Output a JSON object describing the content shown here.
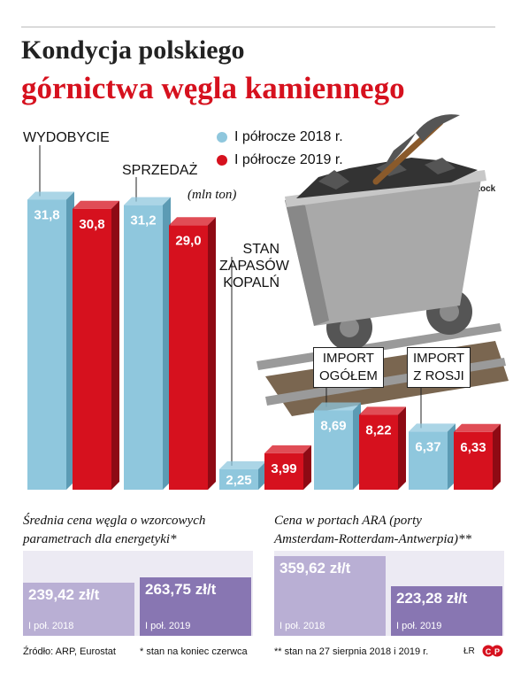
{
  "title_line1": "Kondycja polskiego",
  "title_line2": "górnictwa węgla kamiennego",
  "legend": [
    {
      "label": "I półrocze 2018 r.",
      "color": "#8fc7dd"
    },
    {
      "label": "I półrocze 2019 r.",
      "color": "#d6111e"
    }
  ],
  "unit": "(mln ton)",
  "photo_credit": "Fot. Shutterstock",
  "chart_data": {
    "type": "bar",
    "unit": "(mln ton)",
    "groups": [
      {
        "label": "WYDOBYCIE",
        "values": [
          31.8,
          30.8
        ],
        "value_labels": [
          "31,8",
          "30,8"
        ]
      },
      {
        "label": "SPRZEDAŻ",
        "values": [
          31.2,
          29.0
        ],
        "value_labels": [
          "31,2",
          "29,0"
        ]
      },
      {
        "label": "STAN ZAPASÓW KOPALŃ",
        "label_lines": [
          "STAN",
          "ZAPASÓW",
          "KOPALŃ"
        ],
        "values": [
          2.25,
          3.99
        ],
        "value_labels": [
          "2,25",
          "3,99"
        ]
      },
      {
        "label": "IMPORT OGÓŁEM",
        "label_lines": [
          "IMPORT",
          "OGÓŁEM"
        ],
        "values": [
          8.69,
          8.22
        ],
        "value_labels": [
          "8,69",
          "8,22"
        ]
      },
      {
        "label": "IMPORT Z ROSJI",
        "label_lines": [
          "IMPORT",
          "Z ROSJI"
        ],
        "values": [
          6.37,
          6.33
        ],
        "value_labels": [
          "6,37",
          "6,33"
        ]
      }
    ],
    "series": [
      {
        "name": "I półrocze 2018 r.",
        "color": "#8fc7dd"
      },
      {
        "name": "I półrocze 2019 r.",
        "color": "#d6111e"
      }
    ]
  },
  "price_panels": [
    {
      "title": "Średnia cena węgla o wzorcowych parametrach dla energetyki*",
      "title_lines": [
        "Średnia cena węgla o wzorcowych",
        "parametrach dla energetyki*"
      ],
      "items": [
        {
          "value": 239.42,
          "value_label": "239,42 zł/t",
          "period": "I poł. 2018",
          "color": "#b9afd4"
        },
        {
          "value": 263.75,
          "value_label": "263,75 zł/t",
          "period": "I poł. 2019",
          "color": "#8876b2"
        }
      ]
    },
    {
      "title": "Cena w portach ARA (porty Amsterdam-Rotterdam-Antwerpia)**",
      "title_lines": [
        "Cena w portach ARA (porty",
        "Amsterdam-Rotterdam-Antwerpia)**"
      ],
      "items": [
        {
          "value": 359.62,
          "value_label": "359,62 zł/t",
          "period": "I poł. 2018",
          "color": "#b9afd4"
        },
        {
          "value": 223.28,
          "value_label": "223,28 zł/t",
          "period": "I poł. 2019",
          "color": "#8876b2"
        }
      ]
    }
  ],
  "footer": {
    "source": "Źródło: ARP, Eurostat",
    "note1": "* stan na koniec czerwca",
    "note2": "** stan na 27 sierpnia 2018 i 2019 r.",
    "author": "ŁR"
  },
  "colors": {
    "blue": "#8fc7dd",
    "red": "#d6111e",
    "lilac_light": "#b9afd4",
    "lilac_dark": "#8876b2"
  }
}
